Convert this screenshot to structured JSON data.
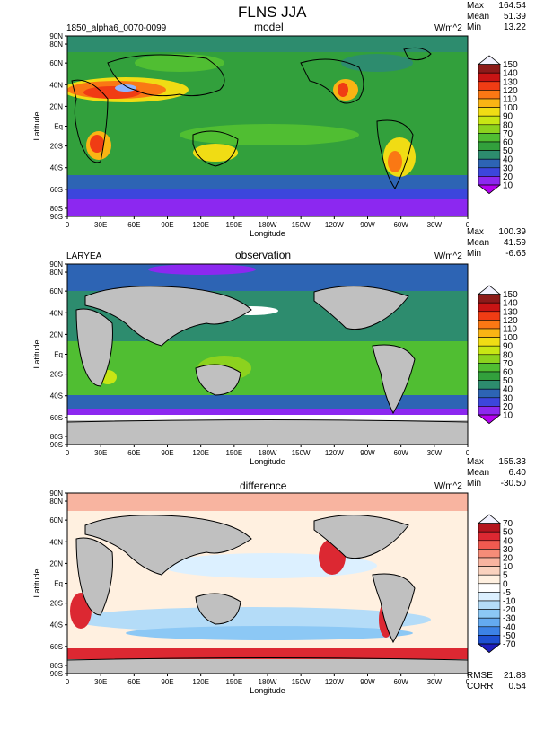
{
  "figure": {
    "title": "FLNS JJA"
  },
  "x_ticks": [
    "0",
    "30E",
    "60E",
    "90E",
    "120E",
    "150E",
    "180W",
    "150W",
    "120W",
    "90W",
    "60W",
    "30W",
    "0"
  ],
  "y_ticks": [
    "90N",
    "80N",
    "60N",
    "40N",
    "20N",
    "Eq",
    "20S",
    "40S",
    "60S",
    "80S",
    "90S"
  ],
  "panels": [
    {
      "left_label": "1850_alpha6_0070-0099",
      "title": "model",
      "units": "W/m^2",
      "max_label": "Max",
      "max_value": "164.54",
      "mean_label": "Mean",
      "mean_value": "51.39",
      "min_label": "Min",
      "min_value": "13.22",
      "xlabel": "Longitude",
      "ylabel": "Latitude",
      "colorbar": [
        "150",
        "140",
        "130",
        "120",
        "110",
        "100",
        "90",
        "80",
        "70",
        "60",
        "50",
        "40",
        "30",
        "20",
        "10"
      ],
      "colors": [
        "#f2f2ff",
        "#8c1a1a",
        "#c81414",
        "#f03c14",
        "#fa7814",
        "#fab414",
        "#f0dc14",
        "#c8e614",
        "#8cd21e",
        "#50be32",
        "#32a03c",
        "#2d8c6e",
        "#2d64b4",
        "#3c46dc",
        "#8c28f0",
        "#b400f0"
      ]
    },
    {
      "left_label": "LARYEA",
      "title": "observation",
      "units": "W/m^2",
      "max_label": "Max",
      "max_value": "100.39",
      "mean_label": "Mean",
      "mean_value": "41.59",
      "min_label": "Min",
      "min_value": "-6.65",
      "xlabel": "Longitude",
      "ylabel": "Latitude",
      "colorbar": [
        "150",
        "140",
        "130",
        "120",
        "110",
        "100",
        "90",
        "80",
        "70",
        "60",
        "50",
        "40",
        "30",
        "20",
        "10"
      ],
      "colors": [
        "#f2f2ff",
        "#8c1a1a",
        "#c81414",
        "#f03c14",
        "#fa7814",
        "#fab414",
        "#f0dc14",
        "#c8e614",
        "#8cd21e",
        "#50be32",
        "#32a03c",
        "#2d8c6e",
        "#2d64b4",
        "#3c46dc",
        "#8c28f0",
        "#b400f0"
      ]
    },
    {
      "left_label": "",
      "title": "difference",
      "units": "W/m^2",
      "max_label": "Max",
      "max_value": "155.33",
      "mean_label": "Mean",
      "mean_value": "6.40",
      "min_label": "Min",
      "min_value": "-30.50",
      "rmse_label": "RMSE",
      "rmse_value": "21.88",
      "corr_label": "CORR",
      "corr_value": "0.54",
      "xlabel": "Longitude",
      "ylabel": "Latitude",
      "colorbar": [
        "70",
        "50",
        "40",
        "30",
        "20",
        "10",
        "5",
        "0",
        "-5",
        "-10",
        "-20",
        "-30",
        "-40",
        "-50",
        "-70"
      ],
      "colors": [
        "#f2f2ff",
        "#b4141e",
        "#dc2832",
        "#f05a50",
        "#f58c78",
        "#f8b4a0",
        "#fad2be",
        "#fff0e0",
        "#ffffff",
        "#dcf0ff",
        "#b4dcf8",
        "#8cc8f5",
        "#64aaf0",
        "#3c82e6",
        "#1e50d2",
        "#1e1ebe"
      ]
    }
  ]
}
